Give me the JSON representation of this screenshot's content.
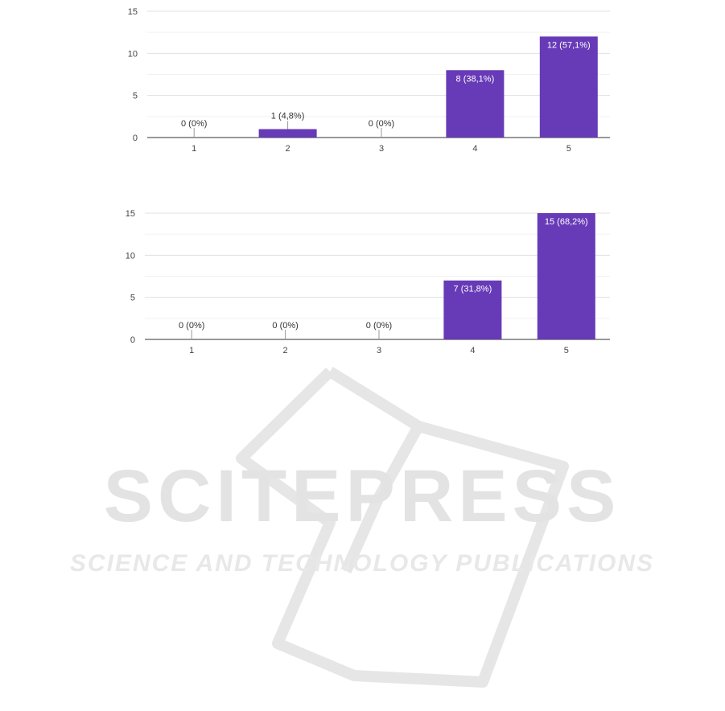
{
  "chart_data": [
    {
      "type": "bar",
      "categories": [
        "1",
        "2",
        "3",
        "4",
        "5"
      ],
      "values": [
        0,
        1,
        0,
        8,
        12
      ],
      "data_labels": [
        "0 (0%)",
        "1 (4,8%)",
        "0 (0%)",
        "8 (38,1%)",
        "12 (57,1%)"
      ],
      "y_ticks": [
        "0",
        "5",
        "10",
        "15"
      ],
      "ylim": [
        0,
        15
      ],
      "title": "",
      "xlabel": "",
      "ylabel": "",
      "grid": true,
      "bar_color": "#673ab7"
    },
    {
      "type": "bar",
      "categories": [
        "1",
        "2",
        "3",
        "4",
        "5"
      ],
      "values": [
        0,
        0,
        0,
        7,
        15
      ],
      "data_labels": [
        "0 (0%)",
        "0 (0%)",
        "0 (0%)",
        "7 (31,8%)",
        "15 (68,2%)"
      ],
      "y_ticks": [
        "0",
        "5",
        "10",
        "15"
      ],
      "ylim": [
        0,
        15
      ],
      "title": "",
      "xlabel": "",
      "ylabel": "",
      "grid": true,
      "bar_color": "#673ab7"
    }
  ],
  "watermark": {
    "brand": "SCITEPRESS",
    "tagline": "SCIENCE AND TECHNOLOGY PUBLICATIONS"
  }
}
